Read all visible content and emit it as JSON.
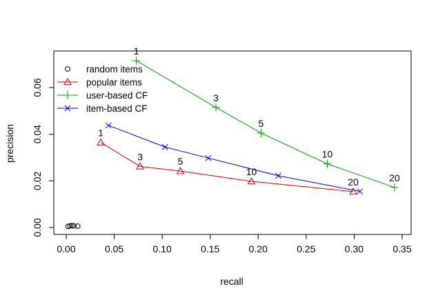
{
  "chart_data": {
    "type": "line",
    "xlabel": "recall",
    "ylabel": "precision",
    "xlim": [
      0.0,
      0.35
    ],
    "ylim": [
      0.0,
      0.06
    ],
    "x_ticks": [
      "0.00",
      "0.05",
      "0.10",
      "0.15",
      "0.20",
      "0.25",
      "0.30",
      "0.35"
    ],
    "y_ticks": [
      "0.00",
      "0.02",
      "0.04",
      "0.06"
    ],
    "grid": false,
    "legend_position": "top-left",
    "series": [
      {
        "name": "random items",
        "color": "#000000",
        "marker": "circle",
        "x": [
          0.002,
          0.004,
          0.006,
          0.008,
          0.012
        ],
        "y": [
          0.0005,
          0.0007,
          0.0008,
          0.0007,
          0.0006
        ],
        "labels": [
          "",
          "",
          "",
          "",
          ""
        ]
      },
      {
        "name": "popular items",
        "color": "#cc0000",
        "marker": "triangle",
        "x": [
          0.036,
          0.077,
          0.119,
          0.193,
          0.299
        ],
        "y": [
          0.0365,
          0.0262,
          0.0242,
          0.0198,
          0.0154
        ],
        "labels": [
          "1",
          "3",
          "5",
          "10",
          "20"
        ]
      },
      {
        "name": "user-based CF",
        "color": "#00a000",
        "marker": "plus",
        "x": [
          0.073,
          0.156,
          0.203,
          0.272,
          0.342
        ],
        "y": [
          0.0715,
          0.0515,
          0.0405,
          0.0273,
          0.0172
        ],
        "labels": [
          "1",
          "3",
          "5",
          "10",
          "20"
        ]
      },
      {
        "name": "item-based CF",
        "color": "#0000cc",
        "marker": "x",
        "x": [
          0.044,
          0.103,
          0.148,
          0.221,
          0.306
        ],
        "y": [
          0.0438,
          0.0345,
          0.0298,
          0.0222,
          0.0155
        ],
        "labels": [
          "",
          "",
          "",
          "",
          ""
        ]
      }
    ]
  }
}
